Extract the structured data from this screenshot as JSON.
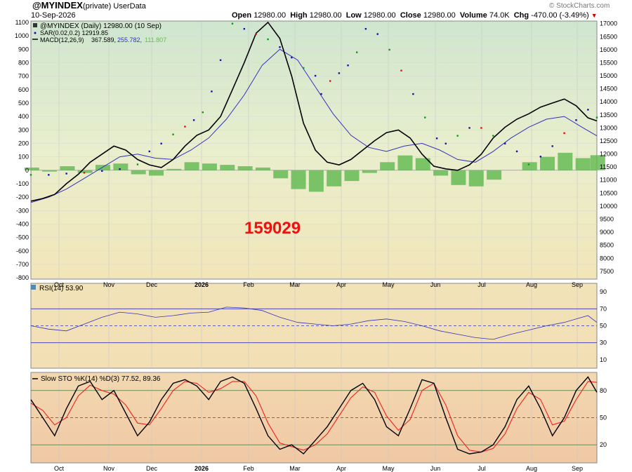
{
  "header": {
    "symbol": "@MYINDEX",
    "subtitle": "(private)  UserData",
    "date": "10-Sep-2026",
    "open_label": "Open",
    "open": "12980.00",
    "high_label": "High",
    "high": "12980.00",
    "low_label": "Low",
    "low": "12980.00",
    "close_label": "Close",
    "close": "12980.00",
    "volume_label": "Volume",
    "volume": "74.0K",
    "chg_label": "Chg",
    "chg": "-470.00 (-3.49%)",
    "credit": "© StockCharts.com"
  },
  "watermark": "159029",
  "colors": {
    "price_line": "#000000",
    "signal_line": "#3333bb",
    "sar_blue": "#1111aa",
    "sar_green": "#119911",
    "sar_red": "#dd1111",
    "histogram": "#66bb55",
    "rsi_line": "#3333bb",
    "stoch_k": "#000000",
    "stoch_d": "#ee2222",
    "watermark": "#ee1111"
  },
  "chart_data": [
    {
      "type": "line",
      "title": "@MYINDEX (Daily) 12980.00 (10 Sep)",
      "x_labels": [
        "Oct",
        "Nov",
        "Dec",
        "2026",
        "Feb",
        "Mar",
        "Apr",
        "May",
        "Jun",
        "Jul",
        "Aug",
        "Sep"
      ],
      "y_right_ticks": [
        7500,
        8000,
        8500,
        9000,
        9500,
        10000,
        10500,
        11000,
        11500,
        12000,
        12500,
        13000,
        13500,
        14000,
        14500,
        15000,
        15500,
        16000,
        16500,
        17000
      ],
      "y_left_ticks": [
        -800,
        -700,
        -600,
        -500,
        -400,
        -300,
        -200,
        -100,
        0,
        100,
        200,
        300,
        400,
        500,
        600,
        700,
        800,
        900,
        1000,
        1100
      ],
      "ylim_right": [
        7200,
        17100
      ],
      "ylim_left": [
        -810,
        1110
      ],
      "legend": [
        {
          "label": "@MYINDEX (Daily) 12980.00 (10 Sep)",
          "marker": "square"
        },
        {
          "label": "SAR(0.02,0.2) 12919.85",
          "marker": "dots"
        },
        {
          "label": "MACD(12,26,9)",
          "values": [
            "367.589",
            "255.782",
            "111.807"
          ]
        }
      ],
      "sar_points": [
        [
          0,
          11200
        ],
        [
          6,
          11200
        ],
        [
          12,
          11250
        ],
        [
          18,
          11280
        ],
        [
          24,
          11350
        ],
        [
          30,
          11420
        ],
        [
          36,
          11600
        ],
        [
          40,
          12100
        ],
        [
          44,
          12400
        ],
        [
          48,
          12750
        ],
        [
          52,
          13050
        ],
        [
          55,
          13300
        ],
        [
          58,
          13600
        ],
        [
          61,
          14400
        ],
        [
          64,
          15600
        ],
        [
          68,
          17000
        ],
        [
          72,
          16800
        ],
        [
          76,
          16600
        ],
        [
          80,
          16400
        ],
        [
          84,
          16100
        ],
        [
          88,
          15700
        ],
        [
          92,
          15300
        ],
        [
          96,
          15000
        ],
        [
          98,
          14300
        ],
        [
          101,
          14800
        ],
        [
          104,
          15100
        ],
        [
          107,
          15400
        ],
        [
          110,
          15900
        ],
        [
          113,
          16800
        ],
        [
          117,
          16600
        ],
        [
          121,
          16000
        ],
        [
          125,
          15200
        ],
        [
          129,
          14300
        ],
        [
          133,
          13400
        ],
        [
          137,
          12600
        ],
        [
          140,
          12400
        ],
        [
          144,
          12700
        ],
        [
          148,
          13000
        ],
        [
          152,
          13000
        ],
        [
          156,
          12700
        ],
        [
          160,
          12400
        ],
        [
          164,
          12100
        ],
        [
          168,
          11600
        ],
        [
          172,
          11900
        ],
        [
          176,
          12300
        ],
        [
          180,
          12800
        ],
        [
          184,
          13300
        ],
        [
          188,
          13700
        ],
        [
          191,
          13400
        ]
      ],
      "price": [
        [
          0,
          -230
        ],
        [
          4,
          -210
        ],
        [
          8,
          -180
        ],
        [
          12,
          -100
        ],
        [
          16,
          -30
        ],
        [
          20,
          60
        ],
        [
          24,
          120
        ],
        [
          28,
          180
        ],
        [
          32,
          150
        ],
        [
          36,
          80
        ],
        [
          40,
          40
        ],
        [
          44,
          20
        ],
        [
          48,
          80
        ],
        [
          52,
          180
        ],
        [
          56,
          260
        ],
        [
          60,
          300
        ],
        [
          64,
          400
        ],
        [
          68,
          600
        ],
        [
          72,
          800
        ],
        [
          76,
          1020
        ],
        [
          80,
          1100
        ],
        [
          84,
          980
        ],
        [
          88,
          700
        ],
        [
          92,
          350
        ],
        [
          96,
          150
        ],
        [
          100,
          60
        ],
        [
          104,
          40
        ],
        [
          108,
          80
        ],
        [
          112,
          150
        ],
        [
          116,
          220
        ],
        [
          120,
          280
        ],
        [
          124,
          300
        ],
        [
          128,
          240
        ],
        [
          132,
          120
        ],
        [
          136,
          30
        ],
        [
          140,
          10
        ],
        [
          144,
          0
        ],
        [
          148,
          40
        ],
        [
          152,
          120
        ],
        [
          156,
          240
        ],
        [
          160,
          320
        ],
        [
          164,
          380
        ],
        [
          168,
          420
        ],
        [
          172,
          470
        ],
        [
          176,
          500
        ],
        [
          180,
          530
        ],
        [
          184,
          480
        ],
        [
          188,
          390
        ],
        [
          191,
          367
        ]
      ],
      "signal": [
        [
          0,
          -240
        ],
        [
          6,
          -200
        ],
        [
          12,
          -140
        ],
        [
          18,
          -60
        ],
        [
          24,
          20
        ],
        [
          30,
          100
        ],
        [
          36,
          120
        ],
        [
          42,
          90
        ],
        [
          48,
          80
        ],
        [
          54,
          150
        ],
        [
          60,
          240
        ],
        [
          66,
          380
        ],
        [
          72,
          560
        ],
        [
          78,
          780
        ],
        [
          84,
          900
        ],
        [
          90,
          820
        ],
        [
          96,
          620
        ],
        [
          102,
          420
        ],
        [
          108,
          260
        ],
        [
          114,
          170
        ],
        [
          120,
          140
        ],
        [
          126,
          180
        ],
        [
          132,
          200
        ],
        [
          138,
          150
        ],
        [
          144,
          80
        ],
        [
          150,
          60
        ],
        [
          156,
          140
        ],
        [
          162,
          240
        ],
        [
          168,
          320
        ],
        [
          174,
          380
        ],
        [
          180,
          400
        ],
        [
          186,
          320
        ],
        [
          191,
          256
        ]
      ],
      "histogram": [
        [
          0,
          20
        ],
        [
          6,
          -10
        ],
        [
          12,
          30
        ],
        [
          18,
          -20
        ],
        [
          24,
          40
        ],
        [
          30,
          50
        ],
        [
          36,
          -30
        ],
        [
          42,
          -40
        ],
        [
          48,
          10
        ],
        [
          54,
          60
        ],
        [
          60,
          50
        ],
        [
          66,
          40
        ],
        [
          72,
          30
        ],
        [
          78,
          20
        ],
        [
          84,
          -60
        ],
        [
          90,
          -140
        ],
        [
          96,
          -160
        ],
        [
          102,
          -120
        ],
        [
          108,
          -80
        ],
        [
          114,
          -20
        ],
        [
          120,
          60
        ],
        [
          126,
          110
        ],
        [
          132,
          90
        ],
        [
          138,
          -40
        ],
        [
          144,
          -110
        ],
        [
          150,
          -120
        ],
        [
          156,
          -70
        ],
        [
          162,
          0
        ],
        [
          168,
          60
        ],
        [
          174,
          100
        ],
        [
          180,
          130
        ],
        [
          186,
          90
        ],
        [
          191,
          112
        ]
      ]
    },
    {
      "type": "line",
      "title": "RSI(14) 53.90",
      "y_ticks": [
        10,
        30,
        50,
        70,
        90
      ],
      "ylim": [
        0,
        100
      ],
      "levels": [
        70,
        50,
        30
      ],
      "values": [
        [
          0,
          50
        ],
        [
          6,
          46
        ],
        [
          12,
          44
        ],
        [
          18,
          52
        ],
        [
          24,
          60
        ],
        [
          30,
          66
        ],
        [
          36,
          64
        ],
        [
          42,
          60
        ],
        [
          48,
          62
        ],
        [
          54,
          65
        ],
        [
          60,
          66
        ],
        [
          66,
          72
        ],
        [
          72,
          71
        ],
        [
          78,
          68
        ],
        [
          84,
          60
        ],
        [
          90,
          54
        ],
        [
          96,
          52
        ],
        [
          102,
          50
        ],
        [
          108,
          52
        ],
        [
          114,
          56
        ],
        [
          120,
          58
        ],
        [
          126,
          55
        ],
        [
          132,
          50
        ],
        [
          138,
          44
        ],
        [
          144,
          40
        ],
        [
          150,
          36
        ],
        [
          156,
          34
        ],
        [
          162,
          40
        ],
        [
          168,
          45
        ],
        [
          174,
          50
        ],
        [
          180,
          54
        ],
        [
          184,
          58
        ],
        [
          188,
          62
        ],
        [
          191,
          54
        ]
      ]
    },
    {
      "type": "line",
      "title": "Slow STO %K(14) %D(3) 77.52, 89.36",
      "y_ticks": [
        20,
        50,
        80
      ],
      "ylim": [
        0,
        100
      ],
      "levels": [
        80,
        50,
        20
      ],
      "series": [
        {
          "values": [
            [
              0,
              70
            ],
            [
              4,
              50
            ],
            [
              8,
              30
            ],
            [
              12,
              60
            ],
            [
              16,
              85
            ],
            [
              20,
              90
            ],
            [
              24,
              70
            ],
            [
              28,
              80
            ],
            [
              32,
              55
            ],
            [
              36,
              30
            ],
            [
              40,
              45
            ],
            [
              44,
              70
            ],
            [
              48,
              88
            ],
            [
              52,
              92
            ],
            [
              56,
              85
            ],
            [
              60,
              70
            ],
            [
              64,
              90
            ],
            [
              68,
              95
            ],
            [
              72,
              88
            ],
            [
              76,
              60
            ],
            [
              80,
              30
            ],
            [
              84,
              15
            ],
            [
              88,
              20
            ],
            [
              92,
              10
            ],
            [
              96,
              25
            ],
            [
              100,
              40
            ],
            [
              104,
              60
            ],
            [
              108,
              80
            ],
            [
              112,
              88
            ],
            [
              116,
              70
            ],
            [
              120,
              40
            ],
            [
              124,
              30
            ],
            [
              128,
              60
            ],
            [
              132,
              92
            ],
            [
              136,
              88
            ],
            [
              140,
              50
            ],
            [
              144,
              15
            ],
            [
              148,
              10
            ],
            [
              152,
              12
            ],
            [
              156,
              20
            ],
            [
              160,
              40
            ],
            [
              164,
              70
            ],
            [
              168,
              85
            ],
            [
              172,
              60
            ],
            [
              176,
              30
            ],
            [
              180,
              50
            ],
            [
              184,
              80
            ],
            [
              188,
              95
            ],
            [
              191,
              78
            ]
          ]
        },
        {
          "values": [
            [
              0,
              66
            ],
            [
              4,
              58
            ],
            [
              8,
              42
            ],
            [
              12,
              50
            ],
            [
              16,
              74
            ],
            [
              20,
              86
            ],
            [
              24,
              80
            ],
            [
              28,
              76
            ],
            [
              32,
              64
            ],
            [
              36,
              44
            ],
            [
              40,
              42
            ],
            [
              44,
              60
            ],
            [
              48,
              80
            ],
            [
              52,
              90
            ],
            [
              56,
              88
            ],
            [
              60,
              78
            ],
            [
              64,
              82
            ],
            [
              68,
              90
            ],
            [
              72,
              90
            ],
            [
              76,
              74
            ],
            [
              80,
              44
            ],
            [
              84,
              22
            ],
            [
              88,
              18
            ],
            [
              92,
              14
            ],
            [
              96,
              20
            ],
            [
              100,
              32
            ],
            [
              104,
              52
            ],
            [
              108,
              72
            ],
            [
              112,
              84
            ],
            [
              116,
              78
            ],
            [
              120,
              52
            ],
            [
              124,
              36
            ],
            [
              128,
              48
            ],
            [
              132,
              80
            ],
            [
              136,
              88
            ],
            [
              140,
              64
            ],
            [
              144,
              30
            ],
            [
              148,
              14
            ],
            [
              152,
              12
            ],
            [
              156,
              16
            ],
            [
              160,
              32
            ],
            [
              164,
              60
            ],
            [
              168,
              78
            ],
            [
              172,
              70
            ],
            [
              176,
              42
            ],
            [
              180,
              46
            ],
            [
              184,
              70
            ],
            [
              188,
              90
            ],
            [
              191,
              89
            ]
          ]
        }
      ]
    }
  ]
}
